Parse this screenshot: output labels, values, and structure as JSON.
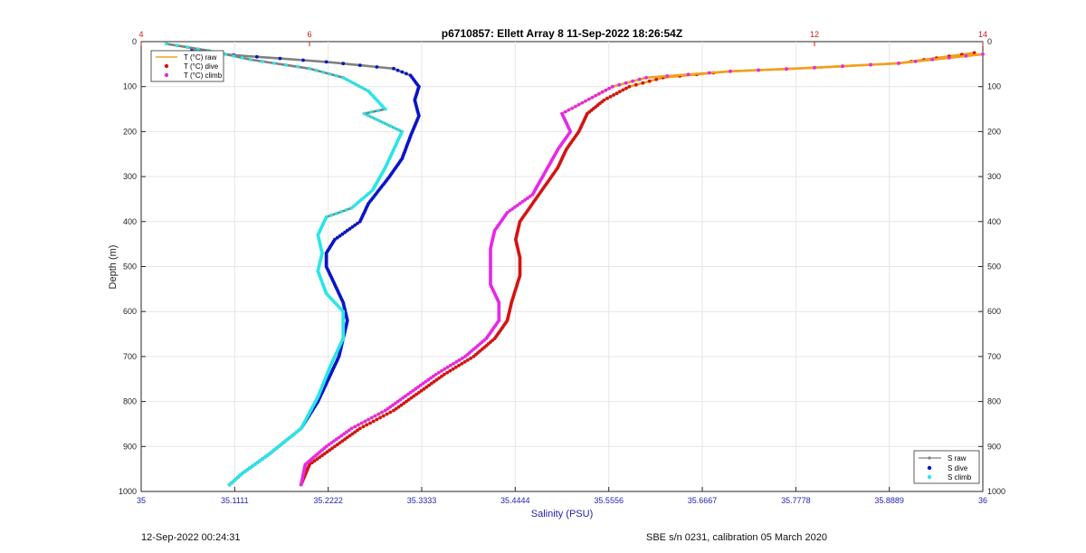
{
  "chart_data": {
    "type": "scatter",
    "title": "p6710857: Ellett Array 8 11-Sep-2022 18:26:54Z",
    "xlabel": "Salinity (PSU)",
    "ylabel": "Depth (m)",
    "x_ticks_salinity": [
      "35",
      "35.1111",
      "35.2222",
      "35.3333",
      "35.4444",
      "35.5556",
      "35.6667",
      "35.7778",
      "35.8889",
      "36"
    ],
    "x_ticks_temperature": [
      "4",
      "6",
      "12",
      "14"
    ],
    "y_ticks": [
      "0",
      "100",
      "200",
      "300",
      "400",
      "500",
      "600",
      "700",
      "800",
      "900",
      "1000"
    ],
    "xlim_salinity": [
      35,
      36
    ],
    "xlim_temperature": [
      4,
      14
    ],
    "ylim_depth": [
      1000,
      0
    ],
    "grid": true,
    "colors": {
      "s_raw": "#808080",
      "s_dive": "#0a14c8",
      "s_climb": "#28e6e6",
      "t_raw": "#f0a020",
      "t_dive": "#d21414",
      "t_climb": "#e628e6"
    },
    "legend_temperature": {
      "placement": "top-left",
      "entries": [
        "T (°C) raw",
        "T (°C) dive",
        "T (°C) climb"
      ]
    },
    "legend_salinity": {
      "placement": "bottom-right",
      "entries": [
        "S raw",
        "S dive",
        "S climb"
      ]
    },
    "series": [
      {
        "name": "S dive",
        "axis": "salinity",
        "points": [
          [
            35.06,
            20
          ],
          [
            35.11,
            30
          ],
          [
            35.22,
            45
          ],
          [
            35.3,
            60
          ],
          [
            35.32,
            75
          ],
          [
            35.33,
            100
          ],
          [
            35.325,
            130
          ],
          [
            35.33,
            165
          ],
          [
            35.32,
            210
          ],
          [
            35.31,
            260
          ],
          [
            35.295,
            300
          ],
          [
            35.27,
            360
          ],
          [
            35.26,
            400
          ],
          [
            35.23,
            440
          ],
          [
            35.22,
            470
          ],
          [
            35.22,
            500
          ],
          [
            35.23,
            540
          ],
          [
            35.24,
            580
          ],
          [
            35.245,
            620
          ],
          [
            35.24,
            660
          ],
          [
            35.235,
            700
          ],
          [
            35.225,
            740
          ],
          [
            35.21,
            800
          ],
          [
            35.19,
            860
          ],
          [
            35.15,
            920
          ],
          [
            35.12,
            960
          ],
          [
            35.105,
            985
          ]
        ]
      },
      {
        "name": "S climb",
        "axis": "salinity",
        "points": [
          [
            35.03,
            5
          ],
          [
            35.08,
            20
          ],
          [
            35.13,
            40
          ],
          [
            35.2,
            60
          ],
          [
            35.24,
            80
          ],
          [
            35.27,
            110
          ],
          [
            35.29,
            150
          ],
          [
            35.265,
            160
          ],
          [
            35.31,
            200
          ],
          [
            35.3,
            240
          ],
          [
            35.29,
            280
          ],
          [
            35.275,
            330
          ],
          [
            35.25,
            370
          ],
          [
            35.22,
            390
          ],
          [
            35.21,
            430
          ],
          [
            35.215,
            470
          ],
          [
            35.21,
            510
          ],
          [
            35.22,
            560
          ],
          [
            35.24,
            600
          ],
          [
            35.24,
            660
          ],
          [
            35.225,
            720
          ],
          [
            35.21,
            790
          ],
          [
            35.19,
            860
          ],
          [
            35.15,
            920
          ],
          [
            35.12,
            960
          ],
          [
            35.105,
            985
          ]
        ]
      },
      {
        "name": "T dive",
        "axis": "temperature",
        "points": [
          [
            13.9,
            25
          ],
          [
            13.0,
            48
          ],
          [
            12.0,
            58
          ],
          [
            11.0,
            66
          ],
          [
            10.2,
            80
          ],
          [
            9.8,
            100
          ],
          [
            9.5,
            130
          ],
          [
            9.3,
            160
          ],
          [
            9.2,
            200
          ],
          [
            9.05,
            240
          ],
          [
            8.95,
            280
          ],
          [
            8.8,
            320
          ],
          [
            8.65,
            360
          ],
          [
            8.5,
            400
          ],
          [
            8.45,
            440
          ],
          [
            8.5,
            480
          ],
          [
            8.5,
            520
          ],
          [
            8.4,
            580
          ],
          [
            8.35,
            620
          ],
          [
            8.2,
            660
          ],
          [
            7.95,
            700
          ],
          [
            7.6,
            740
          ],
          [
            7.3,
            780
          ],
          [
            7.0,
            820
          ],
          [
            6.6,
            860
          ],
          [
            6.3,
            900
          ],
          [
            6.0,
            940
          ],
          [
            5.9,
            985
          ]
        ]
      },
      {
        "name": "T climb",
        "axis": "temperature",
        "points": [
          [
            14.0,
            28
          ],
          [
            13.0,
            48
          ],
          [
            12.0,
            58
          ],
          [
            11.0,
            66
          ],
          [
            10.0,
            80
          ],
          [
            9.6,
            100
          ],
          [
            9.2,
            140
          ],
          [
            9.0,
            160
          ],
          [
            9.1,
            200
          ],
          [
            8.95,
            240
          ],
          [
            8.8,
            290
          ],
          [
            8.65,
            340
          ],
          [
            8.35,
            380
          ],
          [
            8.2,
            420
          ],
          [
            8.15,
            460
          ],
          [
            8.15,
            500
          ],
          [
            8.15,
            540
          ],
          [
            8.25,
            580
          ],
          [
            8.25,
            620
          ],
          [
            8.1,
            660
          ],
          [
            7.85,
            700
          ],
          [
            7.5,
            740
          ],
          [
            7.2,
            780
          ],
          [
            6.9,
            820
          ],
          [
            6.5,
            860
          ],
          [
            6.2,
            900
          ],
          [
            5.95,
            940
          ],
          [
            5.9,
            985
          ]
        ]
      }
    ]
  },
  "footer": {
    "left": "12-Sep-2022 00:24:31",
    "right": "SBE s/n 0231, calibration 05 March 2020"
  }
}
